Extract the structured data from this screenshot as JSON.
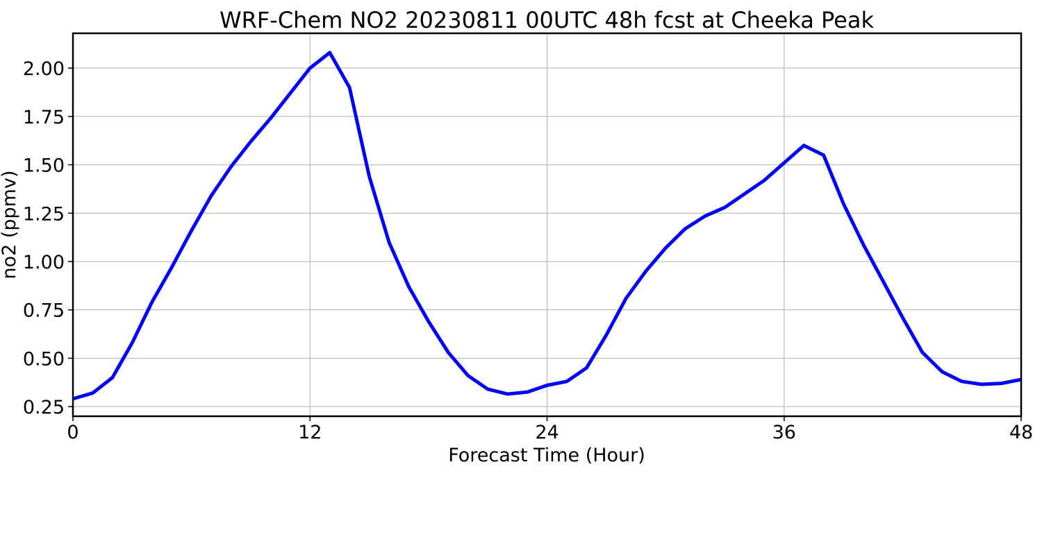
{
  "chart_data": {
    "type": "line",
    "title": "WRF-Chem NO2  20230811 00UTC 48h fcst at Cheeka Peak",
    "xlabel": "Forecast Time (Hour)",
    "ylabel": "no2  (ppmv)",
    "xlim": [
      0,
      48
    ],
    "ylim": [
      0.2,
      2.18
    ],
    "xticks": [
      0,
      12,
      24,
      36,
      48
    ],
    "xtick_labels": [
      "0",
      "12",
      "24",
      "36",
      "48"
    ],
    "yticks": [
      0.25,
      0.5,
      0.75,
      1.0,
      1.25,
      1.5,
      1.75,
      2.0
    ],
    "ytick_labels": [
      "0.25",
      "0.50",
      "0.75",
      "1.00",
      "1.25",
      "1.50",
      "1.75",
      "2.00"
    ],
    "grid": true,
    "line_color": "#0000ff",
    "series": [
      {
        "x": [
          0,
          1,
          2,
          3,
          4,
          5,
          6,
          7,
          8,
          9,
          10,
          11,
          12,
          13,
          14,
          15,
          16,
          17,
          18,
          19,
          20,
          21,
          22,
          23,
          24,
          25,
          26,
          27,
          28,
          29,
          30,
          31,
          32,
          33,
          34,
          35,
          36,
          37,
          38,
          39,
          40,
          41,
          42,
          43,
          44,
          45,
          46,
          47,
          48
        ],
        "values": [
          0.29,
          0.32,
          0.4,
          0.58,
          0.79,
          0.97,
          1.16,
          1.34,
          1.49,
          1.62,
          1.74,
          1.87,
          2.0,
          2.08,
          1.9,
          1.44,
          1.1,
          0.87,
          0.69,
          0.53,
          0.41,
          0.34,
          0.315,
          0.325,
          0.36,
          0.38,
          0.45,
          0.62,
          0.81,
          0.95,
          1.07,
          1.17,
          1.235,
          1.28,
          1.35,
          1.42,
          1.51,
          1.6,
          1.55,
          1.3,
          1.09,
          0.9,
          0.71,
          0.53,
          0.43,
          0.38,
          0.365,
          0.37,
          0.39
        ]
      }
    ]
  }
}
